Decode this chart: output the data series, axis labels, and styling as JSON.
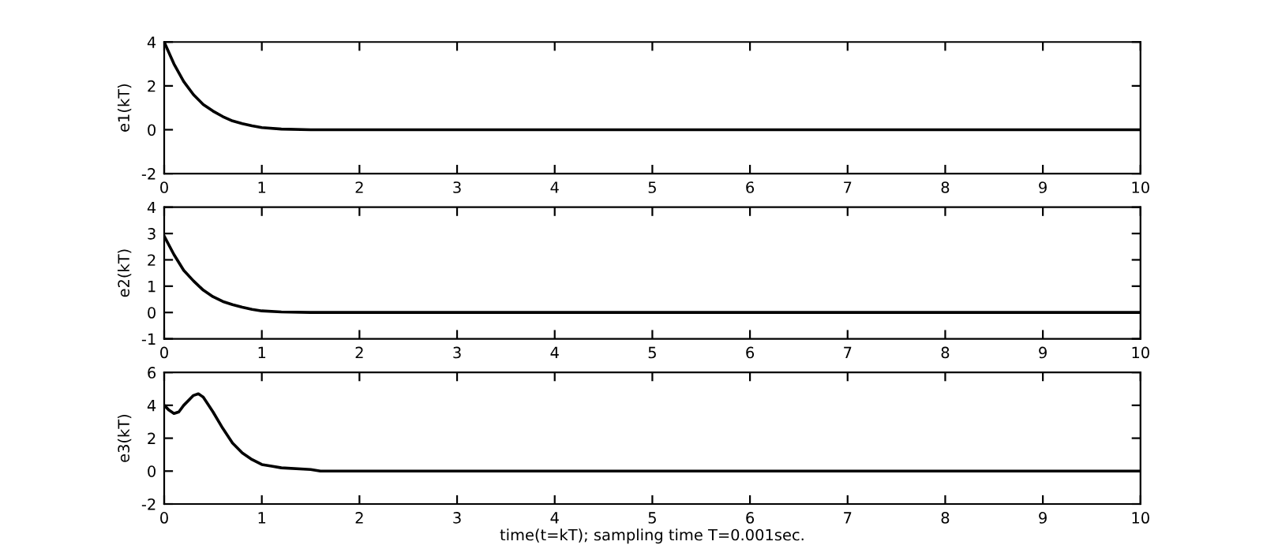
{
  "chart_data": [
    {
      "type": "line",
      "ylabel": "e1(kT)",
      "xlim": [
        0,
        10
      ],
      "xticks": [
        0,
        1,
        2,
        3,
        4,
        5,
        6,
        7,
        8,
        9,
        10
      ],
      "ylim": [
        -2,
        4
      ],
      "yticks": [
        -2,
        0,
        2,
        4
      ],
      "grid": false,
      "legend": false,
      "series": [
        {
          "color": "#000000",
          "x": [
            0,
            0.1,
            0.2,
            0.3,
            0.4,
            0.5,
            0.6,
            0.7,
            0.8,
            0.9,
            1.0,
            1.2,
            1.5,
            10
          ],
          "values": [
            4,
            3.0,
            2.2,
            1.6,
            1.15,
            0.85,
            0.6,
            0.4,
            0.28,
            0.18,
            0.1,
            0.03,
            0,
            0
          ]
        }
      ]
    },
    {
      "type": "line",
      "ylabel": "e2(kT)",
      "xlim": [
        0,
        10
      ],
      "xticks": [
        0,
        1,
        2,
        3,
        4,
        5,
        6,
        7,
        8,
        9,
        10
      ],
      "ylim": [
        -1,
        4
      ],
      "yticks": [
        -1,
        0,
        1,
        2,
        3,
        4
      ],
      "grid": false,
      "legend": false,
      "series": [
        {
          "color": "#000000",
          "x": [
            0,
            0.1,
            0.2,
            0.3,
            0.4,
            0.5,
            0.6,
            0.7,
            0.8,
            0.9,
            1.0,
            1.2,
            1.5,
            10
          ],
          "values": [
            2.9,
            2.2,
            1.6,
            1.2,
            0.85,
            0.6,
            0.42,
            0.3,
            0.2,
            0.12,
            0.06,
            0.02,
            0,
            0
          ]
        }
      ]
    },
    {
      "type": "line",
      "ylabel": "e3(kT)",
      "xlabel": "time(t=kT); sampling time T=0.001sec.",
      "xlim": [
        0,
        10
      ],
      "xticks": [
        0,
        1,
        2,
        3,
        4,
        5,
        6,
        7,
        8,
        9,
        10
      ],
      "ylim": [
        -2,
        6
      ],
      "yticks": [
        -2,
        0,
        2,
        4,
        6
      ],
      "grid": false,
      "legend": false,
      "series": [
        {
          "color": "#000000",
          "x": [
            0,
            0.05,
            0.1,
            0.15,
            0.2,
            0.3,
            0.35,
            0.4,
            0.5,
            0.6,
            0.7,
            0.8,
            0.9,
            1.0,
            1.1,
            1.2,
            1.5,
            1.6,
            10
          ],
          "values": [
            4,
            3.7,
            3.5,
            3.6,
            4.0,
            4.6,
            4.7,
            4.5,
            3.6,
            2.6,
            1.7,
            1.1,
            0.7,
            0.4,
            0.3,
            0.2,
            0.1,
            0,
            0
          ]
        }
      ]
    }
  ]
}
